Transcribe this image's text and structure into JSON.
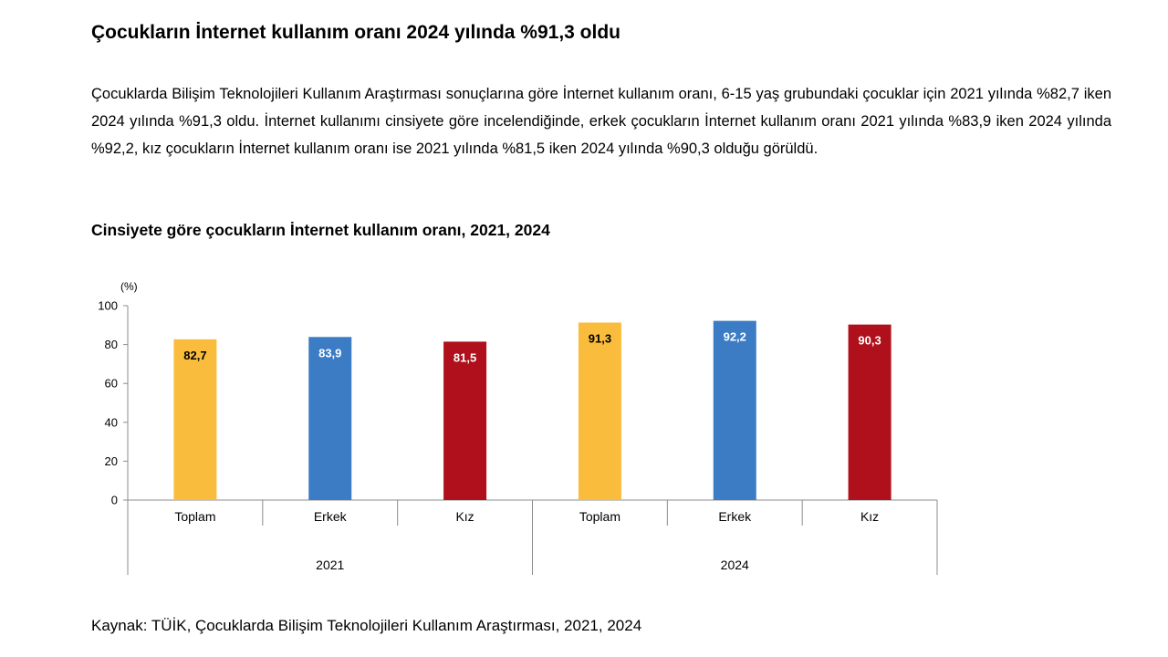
{
  "headline": "Çocukların İnternet kullanım oranı 2024 yılında %91,3 oldu",
  "body": "Çocuklarda Bilişim Teknolojileri Kullanım Araştırması sonuçlarına göre İnternet kullanım oranı, 6-15 yaş grubundaki çocuklar için 2021 yılında %82,7 iken 2024 yılında %91,3 oldu. İnternet kullanımı cinsiyete göre incelendiğinde, erkek çocukların İnternet kullanım oranı 2021 yılında %83,9 iken 2024 yılında %92,2, kız çocukların İnternet kullanım oranı ise 2021 yılında %81,5 iken 2024 yılında %90,3 olduğu görüldü.",
  "source": "Kaynak: TÜİK, Çocuklarda Bilişim Teknolojileri Kullanım Araştırması, 2021, 2024",
  "chart_data": {
    "type": "bar",
    "title": "Cinsiyete göre çocukların İnternet kullanım oranı, 2021, 2024",
    "ylabel": "(%)",
    "ylim": [
      0,
      100
    ],
    "yticks": [
      0,
      20,
      40,
      60,
      80,
      100
    ],
    "grid": false,
    "legend": "none",
    "groups": [
      {
        "label": "2021",
        "categories": [
          "Toplam",
          "Erkek",
          "Kız"
        ],
        "values": [
          82.7,
          83.9,
          81.5
        ],
        "labels": [
          "82,7",
          "83,9",
          "81,5"
        ]
      },
      {
        "label": "2024",
        "categories": [
          "Toplam",
          "Erkek",
          "Kız"
        ],
        "values": [
          91.3,
          92.2,
          90.3
        ],
        "labels": [
          "91,3",
          "92,2",
          "90,3"
        ]
      }
    ],
    "colors": {
      "Toplam": "#f9bc3c",
      "Erkek": "#3b7cc4",
      "Kız": "#b0101b"
    },
    "label_colors": {
      "Toplam": "#000000",
      "Erkek": "#ffffff",
      "Kız": "#ffffff"
    }
  }
}
